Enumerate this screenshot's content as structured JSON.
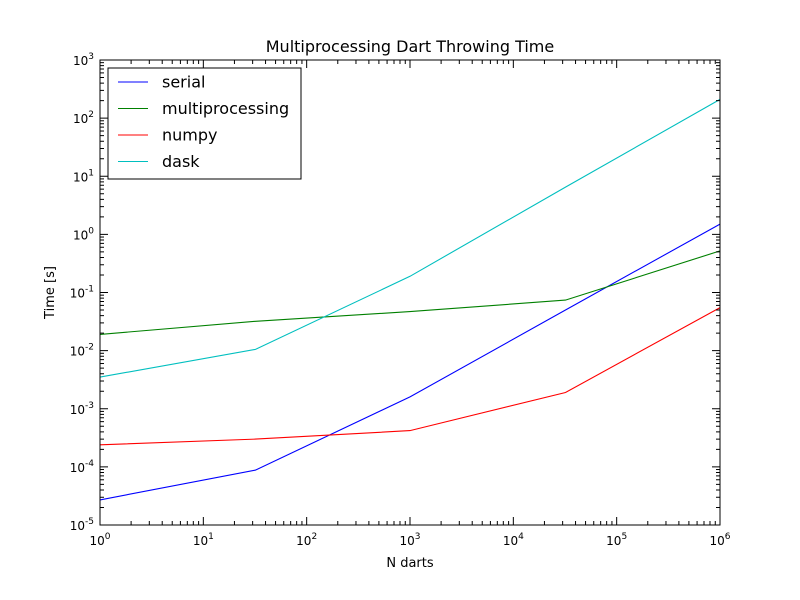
{
  "chart_data": {
    "type": "line",
    "title": "Multiprocessing Dart Throwing Time",
    "xlabel": "N darts",
    "ylabel": "Time [s]",
    "xscale": "log",
    "yscale": "log",
    "xlim": [
      1,
      1000000
    ],
    "ylim": [
      1e-05,
      1000
    ],
    "x_ticks": [
      {
        "base": "10",
        "exp": "0"
      },
      {
        "base": "10",
        "exp": "1"
      },
      {
        "base": "10",
        "exp": "2"
      },
      {
        "base": "10",
        "exp": "3"
      },
      {
        "base": "10",
        "exp": "4"
      },
      {
        "base": "10",
        "exp": "5"
      },
      {
        "base": "10",
        "exp": "6"
      }
    ],
    "y_ticks": [
      {
        "base": "10",
        "exp": "-5"
      },
      {
        "base": "10",
        "exp": "-4"
      },
      {
        "base": "10",
        "exp": "-3"
      },
      {
        "base": "10",
        "exp": "-2"
      },
      {
        "base": "10",
        "exp": "-1"
      },
      {
        "base": "10",
        "exp": "0"
      },
      {
        "base": "10",
        "exp": "1"
      },
      {
        "base": "10",
        "exp": "2"
      },
      {
        "base": "10",
        "exp": "3"
      }
    ],
    "legend_position": "top-left",
    "x": [
      1,
      32,
      1000,
      32000,
      1000000
    ],
    "series": [
      {
        "name": "serial",
        "color": "#0000ff",
        "values": [
          2.7e-05,
          8.8e-05,
          0.0016,
          0.05,
          1.5
        ]
      },
      {
        "name": "multiprocessing",
        "color": "#008000",
        "values": [
          0.019,
          0.032,
          0.047,
          0.074,
          0.52
        ]
      },
      {
        "name": "numpy",
        "color": "#ff0000",
        "values": [
          0.00024,
          0.0003,
          0.00042,
          0.0019,
          0.055
        ]
      },
      {
        "name": "dask",
        "color": "#00bfbf",
        "values": [
          0.0035,
          0.0105,
          0.19,
          6.5,
          210
        ]
      }
    ]
  }
}
